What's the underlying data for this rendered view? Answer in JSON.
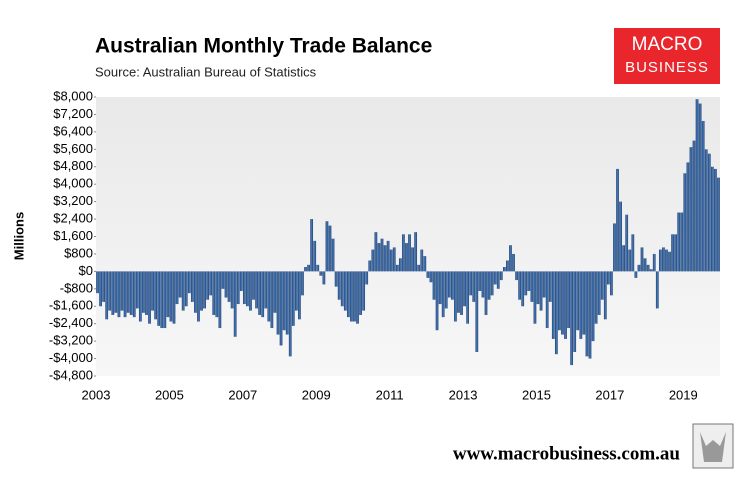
{
  "chart_data": {
    "type": "bar",
    "title": "Australian Monthly Trade Balance",
    "subtitle": "Source: Australian Bureau of Statistics",
    "y_label": "Millions",
    "color": "#2f5f9c",
    "categories": [
      "2003",
      null,
      null,
      null,
      null,
      null,
      null,
      null,
      null,
      null,
      null,
      null,
      null,
      null,
      null,
      null,
      null,
      null,
      null,
      null,
      null,
      null,
      null,
      null,
      "2005",
      null,
      null,
      null,
      null,
      null,
      null,
      null,
      null,
      null,
      null,
      null,
      null,
      null,
      null,
      null,
      null,
      null,
      null,
      null,
      null,
      null,
      null,
      null,
      "2007",
      null,
      null,
      null,
      null,
      null,
      null,
      null,
      null,
      null,
      null,
      null,
      null,
      null,
      null,
      null,
      null,
      null,
      null,
      null,
      null,
      null,
      null,
      null,
      "2009",
      null,
      null,
      null,
      null,
      null,
      null,
      null,
      null,
      null,
      null,
      null,
      null,
      null,
      null,
      null,
      null,
      null,
      null,
      null,
      null,
      null,
      null,
      null,
      "2011",
      null,
      null,
      null,
      null,
      null,
      null,
      null,
      null,
      null,
      null,
      null,
      null,
      null,
      null,
      null,
      null,
      null,
      null,
      null,
      null,
      null,
      null,
      null,
      "2013",
      null,
      null,
      null,
      null,
      null,
      null,
      null,
      null,
      null,
      null,
      null,
      null,
      null,
      null,
      null,
      null,
      null,
      null,
      null,
      null,
      null,
      null,
      null,
      "2015",
      null,
      null,
      null,
      null,
      null,
      null,
      null,
      null,
      null,
      null,
      null,
      null,
      null,
      null,
      null,
      null,
      null,
      null,
      null,
      null,
      null,
      null,
      null,
      "2017",
      null,
      null,
      null,
      null,
      null,
      null,
      null,
      null,
      null,
      null,
      null,
      null,
      null,
      null,
      null,
      null,
      null,
      null,
      null,
      null,
      null,
      null,
      null,
      "2019",
      null,
      null,
      null,
      null,
      null,
      null,
      null,
      null,
      null,
      null,
      null
    ],
    "values": [
      -1000,
      -1600,
      -1400,
      -2200,
      -1800,
      -2000,
      -1900,
      -2100,
      -1800,
      -2100,
      -1900,
      -2000,
      -2100,
      -1700,
      -2300,
      -1900,
      -2000,
      -2400,
      -1800,
      -2200,
      -2500,
      -2600,
      -2600,
      -2100,
      -2300,
      -2400,
      -1500,
      -1200,
      -1800,
      -1600,
      -1000,
      -1400,
      -1900,
      -2300,
      -1800,
      -1700,
      -1300,
      -1100,
      -2000,
      -2100,
      -2600,
      -800,
      -1200,
      -1400,
      -1700,
      -3000,
      -1500,
      -900,
      -1500,
      -1600,
      -1800,
      -1300,
      -1700,
      -2000,
      -2100,
      -1700,
      -2300,
      -2600,
      -1900,
      -2900,
      -3400,
      -2700,
      -2900,
      -3900,
      -2500,
      -1800,
      -2200,
      -1100,
      200,
      300,
      2400,
      1400,
      300,
      -200,
      -600,
      2300,
      2100,
      1500,
      -700,
      -1300,
      -1600,
      -1800,
      -2100,
      -2300,
      -2300,
      -2400,
      -2000,
      -1800,
      -600,
      500,
      1000,
      1800,
      1300,
      1500,
      1200,
      1400,
      1000,
      1100,
      300,
      600,
      1700,
      1300,
      1700,
      1100,
      1800,
      300,
      1000,
      700,
      -300,
      -500,
      -1300,
      -2700,
      -1500,
      -2100,
      -1700,
      -1200,
      -1300,
      -2300,
      -1900,
      -2000,
      -1600,
      -2400,
      -1100,
      -1400,
      -3700,
      -900,
      -1200,
      -2000,
      -1300,
      -1100,
      -600,
      -800,
      -400,
      200,
      500,
      1200,
      800,
      -400,
      -1300,
      -1600,
      -1100,
      -900,
      -1400,
      -2400,
      -1500,
      -1800,
      -1200,
      -2600,
      -1400,
      -3100,
      -3800,
      -2700,
      -2900,
      -3100,
      -2600,
      -4300,
      -3700,
      -2700,
      -3100,
      -2900,
      -3900,
      -4000,
      -3200,
      -2400,
      -2000,
      -1300,
      -2200,
      -600,
      -1100,
      2200,
      4700,
      3200,
      1200,
      2600,
      1000,
      1700,
      -300,
      300,
      1100,
      600,
      300,
      100,
      800,
      -1700,
      1000,
      1100,
      1000,
      900,
      1700,
      1700,
      2700,
      2700,
      4500,
      5000,
      5700,
      6000,
      7900,
      7700,
      6900,
      5600,
      5400,
      4800,
      4700,
      4300
    ],
    "ylim": [
      -4800,
      8000
    ],
    "yticks": [
      {
        "value": -4800,
        "label": "-$4,800"
      },
      {
        "value": -4000,
        "label": "-$4,000"
      },
      {
        "value": -3200,
        "label": "-$3,200"
      },
      {
        "value": -2400,
        "label": "-$2,400"
      },
      {
        "value": -1600,
        "label": "-$1,600"
      },
      {
        "value": -800,
        "label": "-$800"
      },
      {
        "value": 0,
        "label": "$0"
      },
      {
        "value": 800,
        "label": "$800"
      },
      {
        "value": 1600,
        "label": "$1,600"
      },
      {
        "value": 2400,
        "label": "$2,400"
      },
      {
        "value": 3200,
        "label": "$3,200"
      },
      {
        "value": 4000,
        "label": "$4,000"
      },
      {
        "value": 4800,
        "label": "$4,800"
      },
      {
        "value": 5600,
        "label": "$5,600"
      },
      {
        "value": 6400,
        "label": "$6,400"
      },
      {
        "value": 7200,
        "label": "$7,200"
      },
      {
        "value": 8000,
        "label": "$8,000"
      }
    ],
    "grid": false
  },
  "logo": {
    "line1": "MACRO",
    "line2": "BUSINESS"
  },
  "footer": "www.macrobusiness.com.au"
}
